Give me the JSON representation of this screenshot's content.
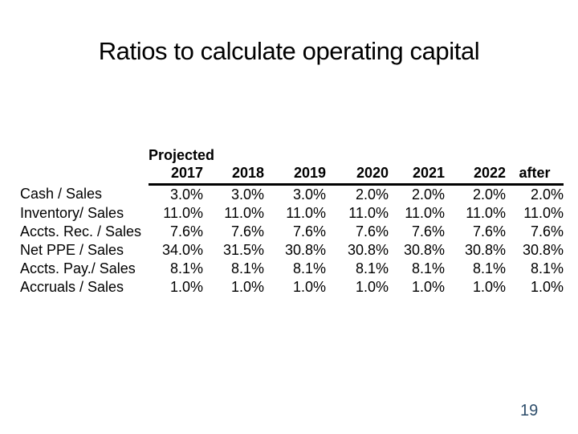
{
  "slide": {
    "title": "Ratios to calculate operating capital",
    "page_number": "19",
    "colors": {
      "background": "#ffffff",
      "title_text": "#000000",
      "table_text": "#000000",
      "header_rule": "#000000",
      "page_number_text": "#2e4e6b"
    }
  },
  "table": {
    "group_header": "Projected",
    "columns": [
      "2017",
      "2018",
      "2019",
      "2020",
      "2021",
      "2022",
      "after"
    ],
    "rows": [
      {
        "label": "Cash / Sales",
        "values": [
          "3.0%",
          "3.0%",
          "3.0%",
          "2.0%",
          "2.0%",
          "2.0%",
          "2.0%"
        ]
      },
      {
        "label": "Inventory/ Sales",
        "values": [
          "11.0%",
          "11.0%",
          "11.0%",
          "11.0%",
          "11.0%",
          "11.0%",
          "11.0%"
        ]
      },
      {
        "label": "Accts. Rec. / Sales",
        "values": [
          "7.6%",
          "7.6%",
          "7.6%",
          "7.6%",
          "7.6%",
          "7.6%",
          "7.6%"
        ]
      },
      {
        "label": "Net PPE / Sales",
        "values": [
          "34.0%",
          "31.5%",
          "30.8%",
          "30.8%",
          "30.8%",
          "30.8%",
          "30.8%"
        ]
      },
      {
        "label": "Accts. Pay./ Sales",
        "values": [
          "8.1%",
          "8.1%",
          "8.1%",
          "8.1%",
          "8.1%",
          "8.1%",
          "8.1%"
        ]
      },
      {
        "label": "Accruals / Sales",
        "values": [
          "1.0%",
          "1.0%",
          "1.0%",
          "1.0%",
          "1.0%",
          "1.0%",
          "1.0%"
        ]
      }
    ]
  }
}
